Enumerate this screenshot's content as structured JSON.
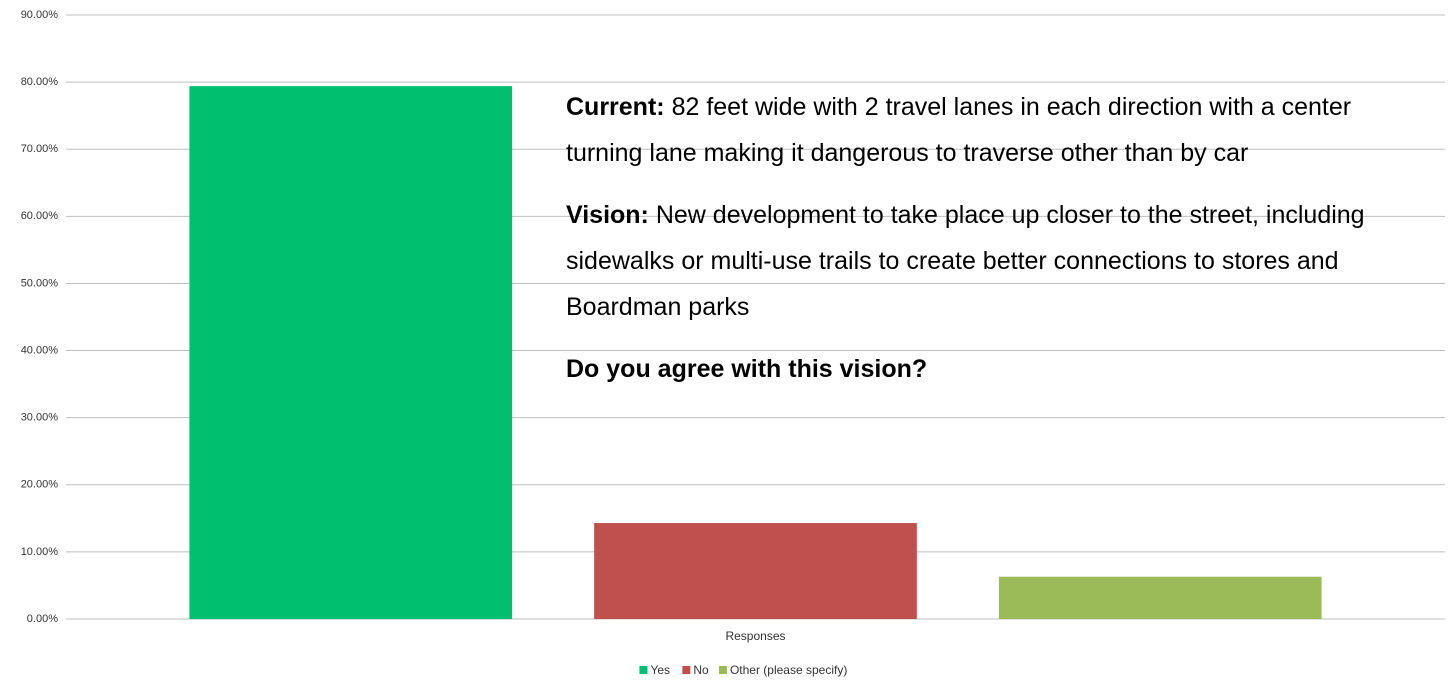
{
  "chart_data": {
    "type": "bar",
    "categories": [
      "Responses"
    ],
    "series": [
      {
        "name": "Yes",
        "color": "#00bf6f",
        "values": [
          79.4
        ]
      },
      {
        "name": "No",
        "color": "#c0504d",
        "values": [
          14.3
        ]
      },
      {
        "name": "Other (please specify)",
        "color": "#9bbb59",
        "values": [
          6.3
        ]
      }
    ],
    "ylim": [
      0,
      90
    ],
    "yticks": [
      {
        "value": 0,
        "label": "0.00%"
      },
      {
        "value": 10,
        "label": "10.00%"
      },
      {
        "value": 20,
        "label": "20.00%"
      },
      {
        "value": 30,
        "label": "30.00%"
      },
      {
        "value": 40,
        "label": "40.00%"
      },
      {
        "value": 50,
        "label": "50.00%"
      },
      {
        "value": 60,
        "label": "60.00%"
      },
      {
        "value": 70,
        "label": "70.00%"
      },
      {
        "value": 80,
        "label": "80.00%"
      },
      {
        "value": 90,
        "label": "90.00%"
      }
    ],
    "grid": true,
    "legend": "bottom",
    "annotations": [
      {
        "label": "Current:",
        "text": "82 feet wide with 2 travel lanes in each direction with a center turning lane making it dangerous to traverse other than by car"
      },
      {
        "label": "Vision:",
        "text": "New development to take place up closer to the street, including sidewalks or multi-use trails to create better connections to stores and Boardman parks"
      },
      {
        "label": "Do you agree with this vision?"
      }
    ]
  }
}
